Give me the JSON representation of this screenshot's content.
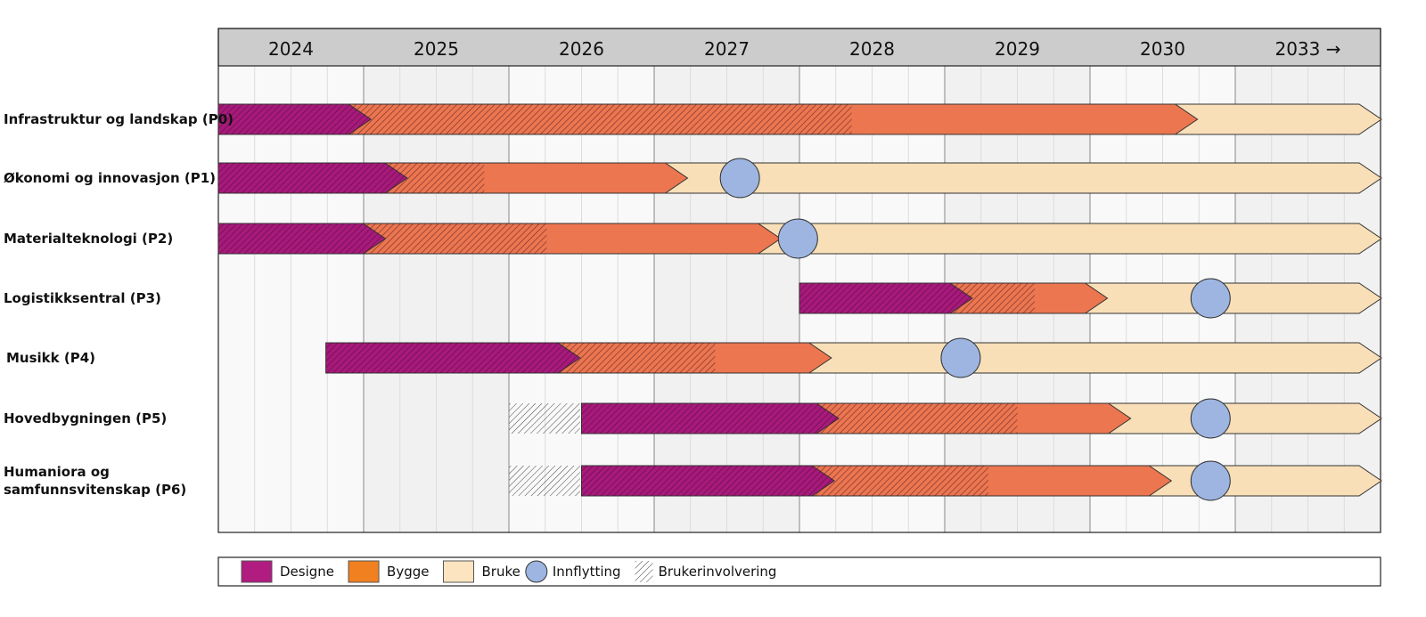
{
  "chart_data": {
    "type": "gantt",
    "years": [
      "2024",
      "2025",
      "2026",
      "2027",
      "2028",
      "2029",
      "2030",
      "2033 →"
    ],
    "x_range": [
      2024,
      2032
    ],
    "colors": {
      "design": "#a8197c",
      "design_stripe": "#4a0a36",
      "build": "#ec764f",
      "use": "#f8dfb8",
      "movein": "#9db5e0",
      "legend_design": "#b01c80",
      "legend_build": "#f08020",
      "legend_use": "#fde4c0",
      "header": "#cccccc",
      "col_a": "#f9f9f9",
      "col_b": "#f1f1f1"
    },
    "rows": [
      {
        "label": [
          "Infrastruktur og landskap (P0)"
        ],
        "start": 2024.0,
        "design_end": 2025.05,
        "build_hatch_end": 2028.36,
        "build_end": 2030.74,
        "movein": null,
        "involvement": null
      },
      {
        "label": [
          "Økonomi og innovasjon (P1)"
        ],
        "start": 2024.0,
        "design_end": 2025.3,
        "build_hatch_end": 2025.83,
        "build_end": 2027.23,
        "movein": 2027.59,
        "involvement": null
      },
      {
        "label": [
          "Materialteknologi (P2)"
        ],
        "start": 2024.0,
        "design_end": 2025.15,
        "build_hatch_end": 2026.26,
        "build_end": 2027.87,
        "movein": 2027.99,
        "involvement": null
      },
      {
        "label": [
          "Logistikksentral (P3)"
        ],
        "start": 2028.0,
        "design_end": 2029.19,
        "build_hatch_end": 2029.62,
        "build_end": 2030.12,
        "movein": 2030.83,
        "involvement": null
      },
      {
        "label": [
          "Musikk (P4)"
        ],
        "start": 2024.74,
        "design_end": 2026.49,
        "build_hatch_end": 2027.42,
        "build_end": 2028.22,
        "movein": 2029.11,
        "involvement": null
      },
      {
        "label": [
          "Hovedbygningen (P5)"
        ],
        "start": 2026.5,
        "design_end": 2028.27,
        "build_hatch_end": 2029.5,
        "build_end": 2030.28,
        "movein": 2030.83,
        "involvement": [
          2026.0,
          2026.49
        ]
      },
      {
        "label": [
          "Humaniora og",
          "samfunnsvitenskap (P6)"
        ],
        "start": 2026.5,
        "design_end": 2028.24,
        "build_hatch_end": 2029.3,
        "build_end": 2030.56,
        "movein": 2030.83,
        "involvement": [
          2026.0,
          2026.49
        ]
      }
    ],
    "legend": [
      {
        "key": "design",
        "label": "Designe"
      },
      {
        "key": "build",
        "label": "Bygge"
      },
      {
        "key": "use",
        "label": "Bruke"
      },
      {
        "key": "movein",
        "label": "Innflytting"
      },
      {
        "key": "involvement",
        "label": "Brukerinvolvering"
      }
    ]
  }
}
